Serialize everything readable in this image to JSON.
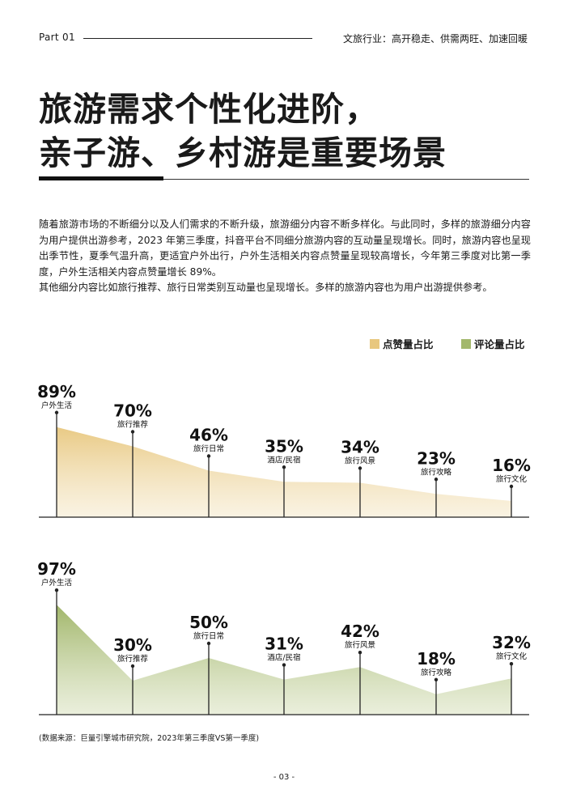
{
  "header": {
    "part": "Part 01",
    "subtitle": "文旅行业：高开稳走、供需两旺、加速回暖"
  },
  "title": {
    "line1": "旅游需求个性化进阶，",
    "line2": "亲子游、乡村游是重要场景"
  },
  "body": {
    "para1": "随着旅游市场的不断细分以及人们需求的不断升级，旅游细分内容不断多样化。与此同时，多样的旅游细分内容为用户提供出游参考，2023 年第三季度，抖音平台不同细分旅游内容的互动量呈现增长。同时，旅游内容也呈现出季节性，夏季气温升高，更适宜户外出行，户外生活相关内容点赞量呈现较高增长，今年第三季度对比第一季度，户外生活相关内容点赞量增长 89%。",
    "para2": "其他细分内容比如旅行推荐、旅行日常类别互动量也呈现增长。多样的旅游内容也为用户出游提供参考。"
  },
  "legend": {
    "likes": "点赞量占比",
    "comments": "评论量占比"
  },
  "colors": {
    "likes": "#E8C77E",
    "comments": "#A3B86C"
  },
  "chart_data": [
    {
      "type": "area",
      "name": "点赞量占比",
      "categories": [
        "户外生活",
        "旅行推荐",
        "旅行日常",
        "酒店/民宿",
        "旅行风景",
        "旅行攻略",
        "旅行文化"
      ],
      "values": [
        89,
        70,
        46,
        35,
        34,
        23,
        16
      ],
      "labels": [
        "89%",
        "70%",
        "46%",
        "35%",
        "34%",
        "23%",
        "16%"
      ],
      "color": "#E8C77E"
    },
    {
      "type": "area",
      "name": "评论量占比",
      "categories": [
        "户外生活",
        "旅行推荐",
        "旅行日常",
        "酒店/民宿",
        "旅行风景",
        "旅行攻略",
        "旅行文化"
      ],
      "values": [
        97,
        30,
        50,
        31,
        42,
        18,
        32
      ],
      "labels": [
        "97%",
        "30%",
        "50%",
        "31%",
        "42%",
        "18%",
        "32%"
      ],
      "color": "#A3B86C"
    }
  ],
  "footer": {
    "source": "(数据来源：巨量引擎城市研究院，2023年第三季度VS第一季度)",
    "page": "- 03 -"
  }
}
